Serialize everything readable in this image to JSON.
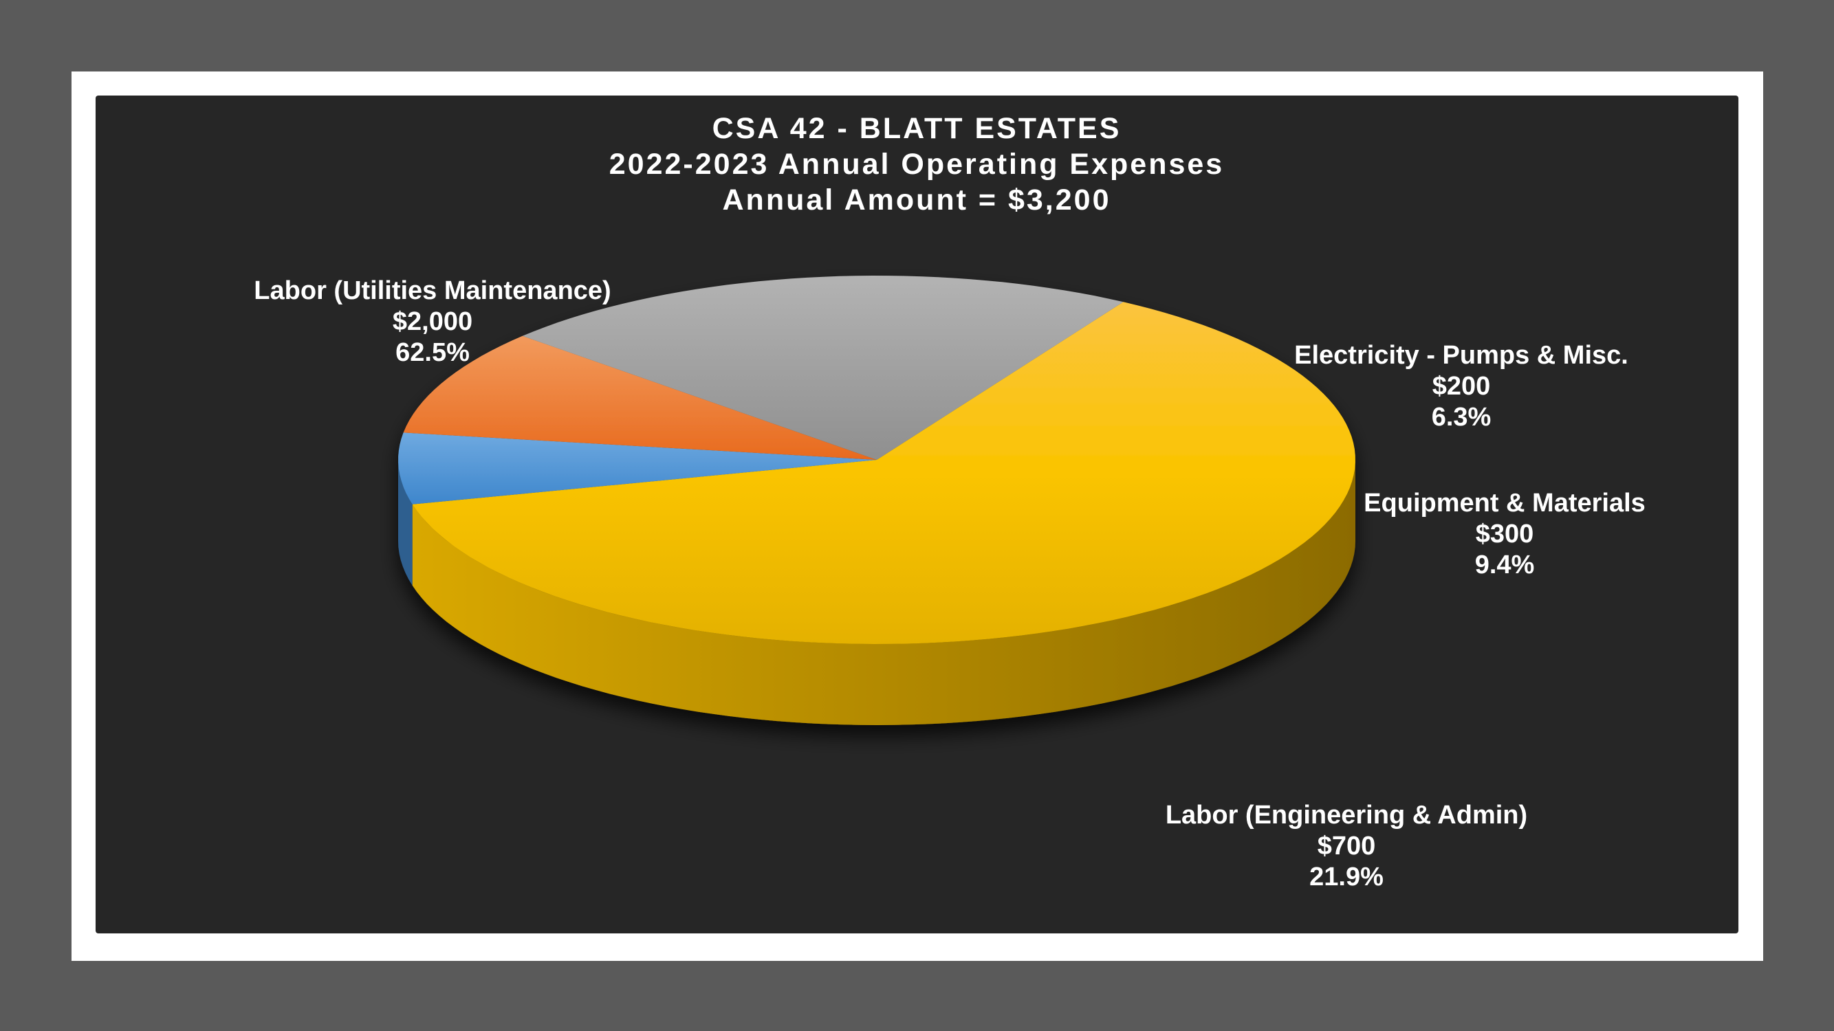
{
  "chart_data": {
    "type": "pie",
    "title": [
      "CSA 42 - BLATT ESTATES",
      "2022-2023 Annual Operating Expenses",
      "Annual Amount = $3,200"
    ],
    "slices": [
      {
        "label": "Labor (Utilities Maintenance)",
        "value": 2000,
        "value_label": "$2,000",
        "percent": "62.5%",
        "color": "#FCC20A"
      },
      {
        "label": "Electricity - Pumps & Misc.",
        "value": 200,
        "value_label": "$200",
        "percent": "6.3%",
        "color": "#5B9BD5"
      },
      {
        "label": "Equipment & Materials",
        "value": 300,
        "value_label": "$300",
        "percent": "9.4%",
        "color": "#ED7D31"
      },
      {
        "label": "Labor (Engineering & Admin)",
        "value": 700,
        "value_label": "$700",
        "percent": "21.9%",
        "color": "#A5A5A5"
      }
    ],
    "style": "3d-exploded-pie",
    "legend": "none"
  }
}
